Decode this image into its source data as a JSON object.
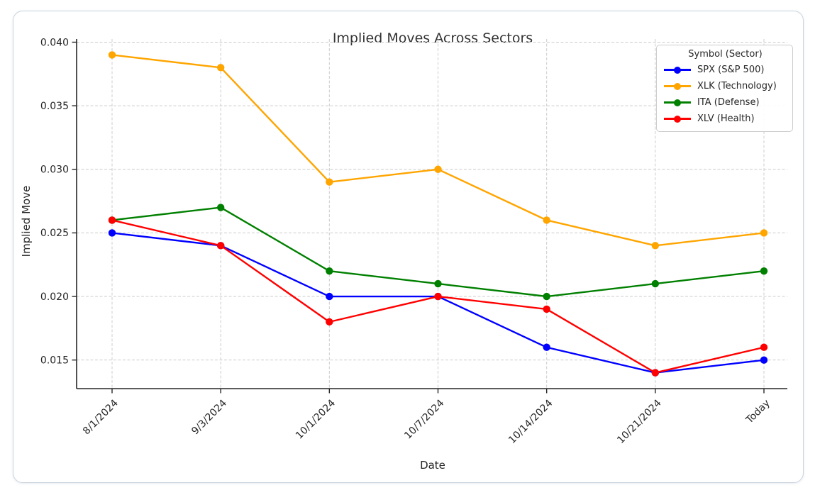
{
  "chart_data": {
    "type": "line",
    "title": "Implied Moves Across Sectors",
    "xlabel": "Date",
    "ylabel": "Implied Move",
    "legend_title": "Symbol (Sector)",
    "legend_position": "upper right",
    "grid": true,
    "categories": [
      "8/1/2024",
      "9/3/2024",
      "10/1/2024",
      "10/7/2024",
      "10/14/2024",
      "10/21/2024",
      "Today"
    ],
    "yticks": [
      0.015,
      0.02,
      0.025,
      0.03,
      0.035,
      0.04
    ],
    "ytick_labels": [
      "0.015",
      "0.020",
      "0.025",
      "0.030",
      "0.035",
      "0.040"
    ],
    "ylim": [
      0.01275,
      0.04025
    ],
    "series": [
      {
        "name": "SPX (S&P 500)",
        "color": "#0000ff",
        "values": [
          0.025,
          0.024,
          0.02,
          0.02,
          0.016,
          0.014,
          0.015
        ]
      },
      {
        "name": "XLK (Technology)",
        "color": "#ffa500",
        "values": [
          0.039,
          0.038,
          0.029,
          0.03,
          0.026,
          0.024,
          0.025
        ]
      },
      {
        "name": "ITA (Defense)",
        "color": "#008000",
        "values": [
          0.026,
          0.027,
          0.022,
          0.021,
          0.02,
          0.021,
          0.022
        ]
      },
      {
        "name": "XLV (Health)",
        "color": "#ff0000",
        "values": [
          0.026,
          0.024,
          0.018,
          0.02,
          0.019,
          0.014,
          0.016
        ]
      }
    ],
    "colors": {
      "grid": "#cccccc",
      "spine": "#262626",
      "tick_text": "#262626",
      "title_text": "#333333"
    }
  }
}
